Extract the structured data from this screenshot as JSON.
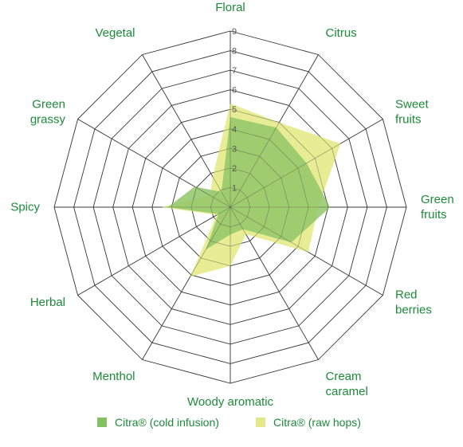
{
  "chart_data": {
    "type": "radar",
    "title": "",
    "axes": [
      "Floral",
      "Citrus",
      "Sweet fruits",
      "Green fruits",
      "Red berries",
      "Cream caramel",
      "Woody aromatic",
      "Menthol",
      "Herbal",
      "Spicy",
      "Green grassy",
      "Vegetal"
    ],
    "axis_display": [
      [
        "Floral"
      ],
      [
        "Citrus"
      ],
      [
        "Sweet",
        "fruits"
      ],
      [
        "Green",
        "fruits"
      ],
      [
        "Red",
        "berries"
      ],
      [
        "Cream",
        "caramel"
      ],
      [
        "Woody aromatic"
      ],
      [
        "Menthol"
      ],
      [
        "Herbal"
      ],
      [
        "Spicy"
      ],
      [
        "Green",
        "grassy"
      ],
      [
        "Vegetal"
      ]
    ],
    "tick_labels": [
      "1",
      "2",
      "3",
      "4",
      "5",
      "6",
      "7",
      "8",
      "9"
    ],
    "rlim": [
      0,
      9
    ],
    "grid": true,
    "legend_position": "bottom",
    "series": [
      {
        "name": "Citra® (raw hops)",
        "color": "#e6eb8a",
        "values": [
          5.3,
          5.0,
          6.5,
          4.5,
          4.6,
          1.6,
          3.0,
          4.1,
          0.8,
          3.5,
          1.2,
          1.8
        ]
      },
      {
        "name": "Citra® (cold infusion)",
        "color": "#90c668",
        "values": [
          4.6,
          4.7,
          4.5,
          5.1,
          3.6,
          1.3,
          1.4,
          2.5,
          0.7,
          3.2,
          2.1,
          0.9
        ]
      }
    ]
  },
  "legend": {
    "items": [
      {
        "label": "Citra® (cold infusion)",
        "color": "#86c062"
      },
      {
        "label": "Citra® (raw hops)",
        "color": "#e3e88a"
      }
    ]
  }
}
